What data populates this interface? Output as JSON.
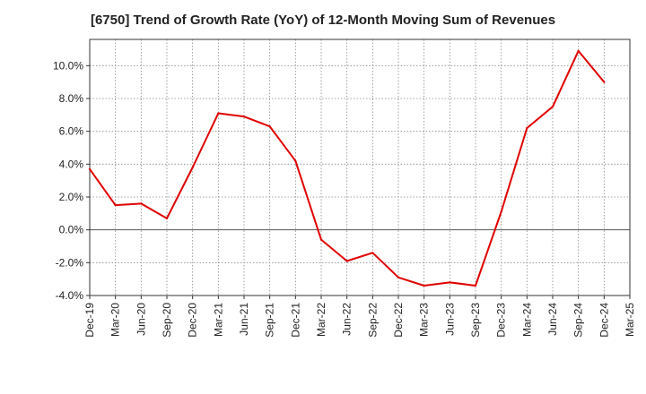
{
  "chart_data": {
    "type": "line",
    "title": "[6750]  Trend of Growth Rate (YoY) of 12-Month Moving Sum of Revenues",
    "xlabel": "",
    "ylabel": "",
    "x_ticks": [
      "Dec-19",
      "Mar-20",
      "Jun-20",
      "Sep-20",
      "Dec-20",
      "Mar-21",
      "Jun-21",
      "Sep-21",
      "Dec-21",
      "Mar-22",
      "Jun-22",
      "Sep-22",
      "Dec-22",
      "Mar-23",
      "Jun-23",
      "Sep-23",
      "Dec-23",
      "Mar-24",
      "Jun-24",
      "Sep-24",
      "Dec-24",
      "Mar-25"
    ],
    "y_ticks": [
      "-4.0%",
      "-2.0%",
      "0.0%",
      "2.0%",
      "4.0%",
      "6.0%",
      "8.0%",
      "10.0%"
    ],
    "ylim": [
      -4.0,
      11.6
    ],
    "grid": true,
    "series": [
      {
        "color": "#e00000",
        "x": [
          "Dec-19",
          "Mar-20",
          "Jun-20",
          "Sep-20",
          "Dec-20",
          "Mar-21",
          "Jun-21",
          "Sep-21",
          "Dec-21",
          "Mar-22",
          "Jun-22",
          "Sep-22",
          "Dec-22",
          "Mar-23",
          "Jun-23",
          "Sep-23",
          "Dec-23",
          "Mar-24",
          "Jun-24",
          "Sep-24",
          "Dec-24"
        ],
        "values": [
          3.7,
          1.5,
          1.6,
          0.7,
          3.8,
          7.1,
          6.9,
          6.3,
          4.2,
          -0.6,
          -1.9,
          -1.4,
          -2.9,
          -3.4,
          -3.2,
          -3.4,
          1.1,
          6.2,
          7.5,
          10.9,
          9.0
        ]
      }
    ]
  }
}
